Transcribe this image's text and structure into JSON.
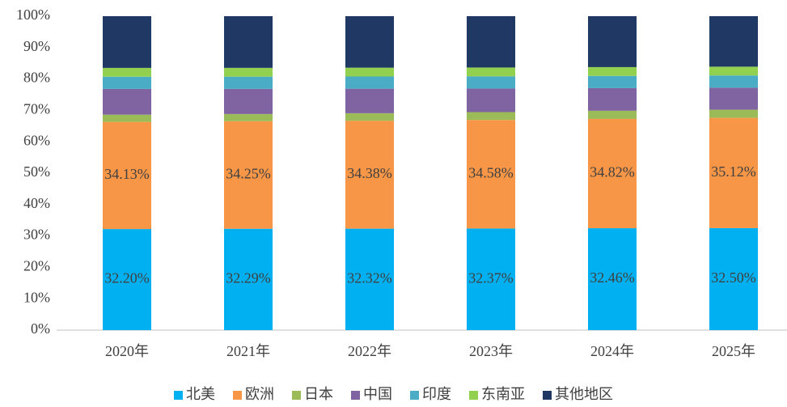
{
  "chart_data": {
    "type": "stacked_bar",
    "categories": [
      "2020年",
      "2021年",
      "2022年",
      "2023年",
      "2024年",
      "2025年"
    ],
    "series": [
      {
        "name": "北美",
        "color": "#00b0f0",
        "values": [
          32.2,
          32.29,
          32.32,
          32.37,
          32.46,
          32.5
        ],
        "value_labels": [
          "32.20%",
          "32.29%",
          "32.32%",
          "32.37%",
          "32.46%",
          "32.50%"
        ]
      },
      {
        "name": "欧洲",
        "color": "#f79646",
        "values": [
          34.13,
          34.25,
          34.38,
          34.58,
          34.82,
          35.12
        ],
        "value_labels": [
          "34.13%",
          "34.25%",
          "34.38%",
          "34.58%",
          "34.82%",
          "35.12%"
        ]
      },
      {
        "name": "日本",
        "color": "#9bbb59",
        "values": [
          2.3,
          2.3,
          2.4,
          2.5,
          2.6,
          2.6
        ]
      },
      {
        "name": "中国",
        "color": "#8064a2",
        "values": [
          8.2,
          8.0,
          7.8,
          7.5,
          7.2,
          7.0
        ]
      },
      {
        "name": "印度",
        "color": "#4bacc6",
        "values": [
          3.9,
          3.9,
          3.9,
          3.9,
          3.9,
          3.9
        ]
      },
      {
        "name": "东南亚",
        "color": "#92d050",
        "values": [
          2.8,
          2.8,
          2.8,
          2.8,
          2.8,
          2.8
        ]
      },
      {
        "name": "其他地区",
        "color": "#1f3864",
        "values": [
          16.47,
          16.46,
          16.4,
          16.35,
          16.22,
          16.08
        ]
      }
    ],
    "ylim": [
      0,
      100
    ],
    "yticks": [
      {
        "value": 0,
        "label": "0%"
      },
      {
        "value": 10,
        "label": "10%"
      },
      {
        "value": 20,
        "label": "20%"
      },
      {
        "value": 30,
        "label": "30%"
      },
      {
        "value": 40,
        "label": "40%"
      },
      {
        "value": 50,
        "label": "50%"
      },
      {
        "value": 60,
        "label": "60%"
      },
      {
        "value": 70,
        "label": "70%"
      },
      {
        "value": 80,
        "label": "80%"
      },
      {
        "value": 90,
        "label": "90%"
      },
      {
        "value": 100,
        "label": "100%"
      }
    ],
    "legend": "bottom"
  }
}
